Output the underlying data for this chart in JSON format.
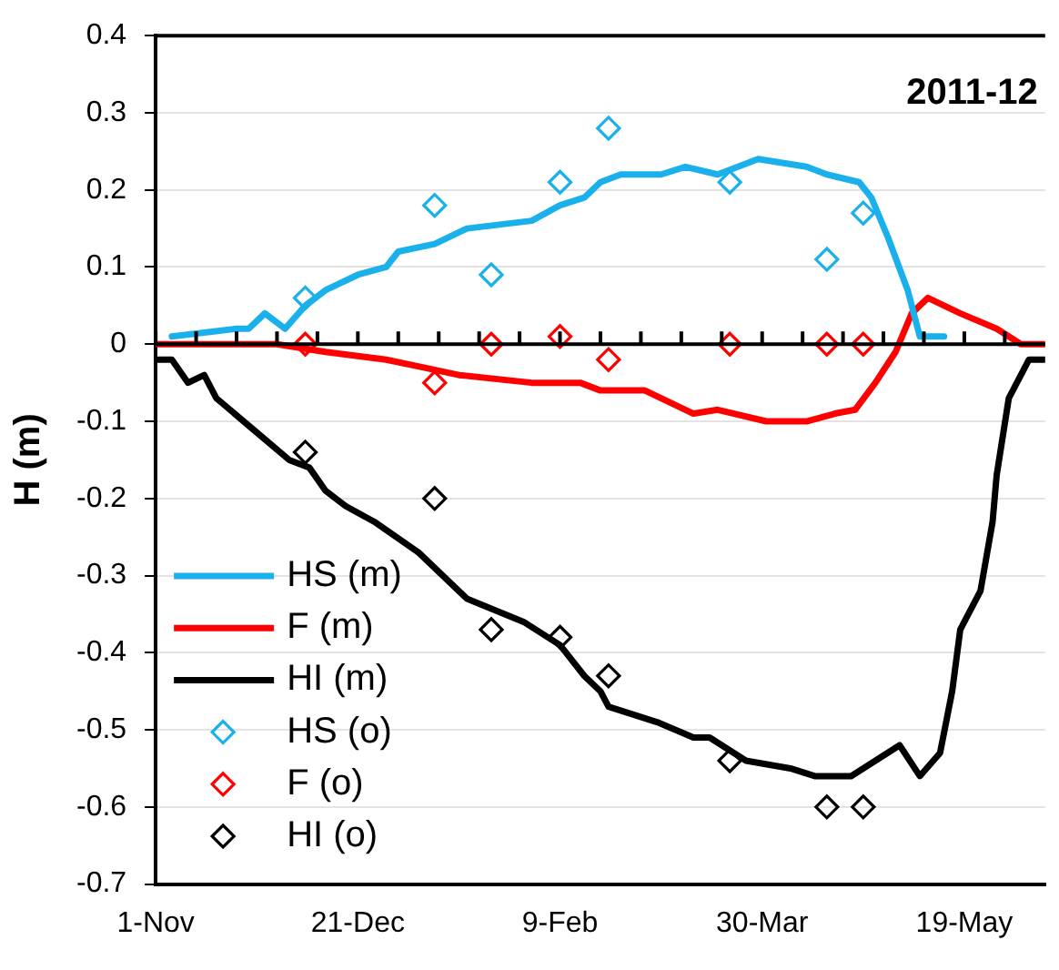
{
  "chart_data": {
    "type": "line",
    "title": "2011-12",
    "ylabel": "H (m)",
    "xlim": [
      "2011-11-01",
      "2012-06-08"
    ],
    "xticks": [
      {
        "value": "2011-11-01",
        "label": "1-Nov"
      },
      {
        "value": "2011-11-11",
        "label": null
      },
      {
        "value": "2011-11-21",
        "label": null
      },
      {
        "value": "2011-12-01",
        "label": null
      },
      {
        "value": "2011-12-11",
        "label": null
      },
      {
        "value": "2011-12-21",
        "label": "21-Dec"
      },
      {
        "value": "2011-12-31",
        "label": null
      },
      {
        "value": "2012-01-10",
        "label": null
      },
      {
        "value": "2012-01-20",
        "label": null
      },
      {
        "value": "2012-01-30",
        "label": null
      },
      {
        "value": "2012-02-09",
        "label": "9-Feb"
      },
      {
        "value": "2012-02-19",
        "label": null
      },
      {
        "value": "2012-02-29",
        "label": null
      },
      {
        "value": "2012-03-10",
        "label": null
      },
      {
        "value": "2012-03-20",
        "label": null
      },
      {
        "value": "2012-03-30",
        "label": "30-Mar"
      },
      {
        "value": "2012-04-09",
        "label": null
      },
      {
        "value": "2012-04-19",
        "label": null
      },
      {
        "value": "2012-04-29",
        "label": null
      },
      {
        "value": "2012-05-09",
        "label": null
      },
      {
        "value": "2012-05-19",
        "label": "19-May"
      },
      {
        "value": "2012-05-29",
        "label": null
      }
    ],
    "ylim": [
      -0.7,
      0.4
    ],
    "yticks": [
      -0.7,
      -0.6,
      -0.5,
      -0.4,
      -0.3,
      -0.2,
      -0.1,
      0,
      0.1,
      0.2,
      0.3,
      0.4
    ],
    "grid": "y",
    "legend": "bottom left",
    "series": [
      {
        "type": "line",
        "name": "HS (m)",
        "color": "#1ab0ec",
        "marker": "none",
        "x": [
          "2011-11-05",
          "2011-11-21",
          "2011-11-24",
          "2011-11-28",
          "2011-12-03",
          "2011-12-08",
          "2011-12-13",
          "2011-12-21",
          "2011-12-28",
          "2011-12-31",
          "2012-01-09",
          "2012-01-17",
          "2012-02-02",
          "2012-02-09",
          "2012-02-15",
          "2012-02-19",
          "2012-02-24",
          "2012-03-05",
          "2012-03-11",
          "2012-03-19",
          "2012-03-29",
          "2012-04-10",
          "2012-04-15",
          "2012-04-23",
          "2012-04-26",
          "2012-04-30",
          "2012-05-05",
          "2012-05-08",
          "2012-05-14"
        ],
        "values": [
          0.01,
          0.02,
          0.02,
          0.04,
          0.02,
          0.05,
          0.07,
          0.09,
          0.1,
          0.12,
          0.13,
          0.15,
          0.16,
          0.18,
          0.19,
          0.21,
          0.22,
          0.22,
          0.23,
          0.22,
          0.24,
          0.23,
          0.22,
          0.21,
          0.19,
          0.14,
          0.07,
          0.01,
          0.01
        ]
      },
      {
        "type": "line",
        "name": "F (m)",
        "color": "#ff0000",
        "marker": "none",
        "x": [
          "2011-11-01",
          "2011-11-21",
          "2011-11-28",
          "2011-12-01",
          "2011-12-13",
          "2011-12-28",
          "2012-01-06",
          "2012-01-15",
          "2012-02-02",
          "2012-02-14",
          "2012-02-19",
          "2012-03-01",
          "2012-03-13",
          "2012-03-19",
          "2012-03-31",
          "2012-04-10",
          "2012-04-17",
          "2012-04-22",
          "2012-04-27",
          "2012-05-02",
          "2012-05-06",
          "2012-05-10",
          "2012-05-18",
          "2012-05-27",
          "2012-06-02",
          "2012-06-08"
        ],
        "values": [
          0.0,
          0.0,
          0.0,
          0.0,
          -0.01,
          -0.02,
          -0.03,
          -0.04,
          -0.05,
          -0.05,
          -0.06,
          -0.06,
          -0.09,
          -0.085,
          -0.1,
          -0.1,
          -0.09,
          -0.085,
          -0.05,
          -0.01,
          0.04,
          0.06,
          0.04,
          0.02,
          0.0,
          0.0
        ]
      },
      {
        "type": "line",
        "name": "HI (m)",
        "color": "#000000",
        "marker": "none",
        "x": [
          "2011-11-01",
          "2011-11-05",
          "2011-11-09",
          "2011-11-13",
          "2011-11-16",
          "2011-11-25",
          "2011-12-04",
          "2011-12-09",
          "2011-12-13",
          "2011-12-18",
          "2011-12-25",
          "2012-01-05",
          "2012-01-17",
          "2012-01-31",
          "2012-02-09",
          "2012-02-15",
          "2012-02-19",
          "2012-02-21",
          "2012-03-04",
          "2012-03-13",
          "2012-03-17",
          "2012-03-26",
          "2012-04-06",
          "2012-04-12",
          "2012-04-17",
          "2012-04-21",
          "2012-04-27",
          "2012-05-03",
          "2012-05-08",
          "2012-05-13",
          "2012-05-16",
          "2012-05-18",
          "2012-05-23",
          "2012-05-26",
          "2012-05-27",
          "2012-05-30",
          "2012-06-04",
          "2012-06-08"
        ],
        "values": [
          -0.02,
          -0.02,
          -0.05,
          -0.04,
          -0.07,
          -0.11,
          -0.15,
          -0.16,
          -0.19,
          -0.21,
          -0.23,
          -0.27,
          -0.33,
          -0.36,
          -0.39,
          -0.43,
          -0.45,
          -0.47,
          -0.49,
          -0.51,
          -0.51,
          -0.54,
          -0.55,
          -0.56,
          -0.56,
          -0.56,
          -0.54,
          -0.52,
          -0.56,
          -0.53,
          -0.45,
          -0.37,
          -0.32,
          -0.23,
          -0.17,
          -0.07,
          -0.02,
          -0.02
        ]
      },
      {
        "type": "scatter",
        "name": "HS (o)",
        "color": "#1ab0ec",
        "marker": "diamond",
        "x": [
          "2011-12-08",
          "2012-01-09",
          "2012-01-23",
          "2012-02-09",
          "2012-02-21",
          "2012-03-22",
          "2012-04-15",
          "2012-04-24"
        ],
        "values": [
          0.06,
          0.18,
          0.09,
          0.21,
          0.28,
          0.21,
          0.11,
          0.17
        ]
      },
      {
        "type": "scatter",
        "name": "F (o)",
        "color": "#ff0000",
        "marker": "diamond",
        "x": [
          "2011-12-08",
          "2012-01-09",
          "2012-01-23",
          "2012-02-09",
          "2012-02-21",
          "2012-03-22",
          "2012-04-15",
          "2012-04-24"
        ],
        "values": [
          0.0,
          -0.05,
          0.0,
          0.01,
          -0.02,
          0.0,
          0.0,
          0.0
        ]
      },
      {
        "type": "scatter",
        "name": "HI (o)",
        "color": "#000000",
        "marker": "diamond",
        "x": [
          "2011-12-08",
          "2012-01-09",
          "2012-01-23",
          "2012-02-09",
          "2012-02-21",
          "2012-03-22",
          "2012-04-15",
          "2012-04-24"
        ],
        "values": [
          -0.14,
          -0.2,
          -0.37,
          -0.38,
          -0.43,
          -0.54,
          -0.6,
          -0.6
        ]
      }
    ]
  }
}
